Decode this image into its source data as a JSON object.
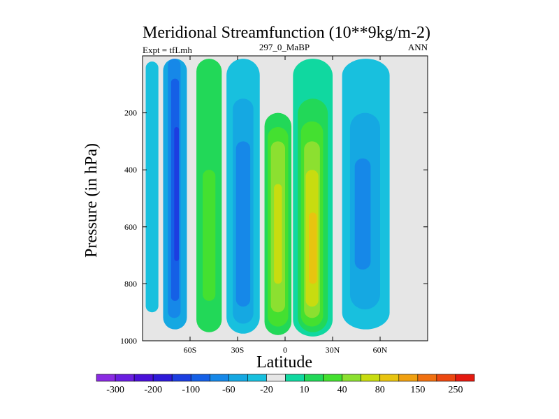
{
  "chart_data": {
    "type": "contour",
    "title": "Meridional Streamfunction (10**9kg/m-2)",
    "left_label": "Expt = tfLmh",
    "center_label": "297_0_MaBP",
    "right_label": "ANN",
    "xlabel": "Latitude",
    "ylabel": "Pressure (in hPa)",
    "xlim": [
      -90,
      90
    ],
    "ylim": [
      1000,
      0
    ],
    "x_ticks": [
      {
        "value": -60,
        "label": "60S"
      },
      {
        "value": -30,
        "label": "30S"
      },
      {
        "value": 0,
        "label": "0"
      },
      {
        "value": 30,
        "label": "30N"
      },
      {
        "value": 60,
        "label": "60N"
      }
    ],
    "y_ticks": [
      {
        "value": 200,
        "label": "200"
      },
      {
        "value": 400,
        "label": "400"
      },
      {
        "value": 600,
        "label": "600"
      },
      {
        "value": 800,
        "label": "800"
      },
      {
        "value": 1000,
        "label": "1000"
      }
    ],
    "missing_color": "#e6e6e6",
    "colorbar": {
      "colors": [
        "#8a2be2",
        "#6a1ee0",
        "#4a10d8",
        "#2e1ad8",
        "#1c3ee0",
        "#1560e6",
        "#1688e8",
        "#15a8e2",
        "#18c0de",
        "#e6e6e6",
        "#10d8a0",
        "#22d858",
        "#44e030",
        "#8ce030",
        "#c8dc10",
        "#e8c410",
        "#f0a010",
        "#f07010",
        "#ec4810",
        "#e41a10"
      ],
      "labels": [
        "-300",
        "-200",
        "-100",
        "-60",
        "-20",
        "10",
        "40",
        "80",
        "150",
        "250"
      ]
    },
    "cells": [
      {
        "lat": [
          -88,
          -80
        ],
        "p": [
          20,
          900
        ],
        "level": 8
      },
      {
        "lat": [
          -77,
          -62
        ],
        "p": [
          10,
          960
        ],
        "level": 7
      },
      {
        "lat": [
          -74,
          -66
        ],
        "p": [
          10,
          920
        ],
        "level": 6
      },
      {
        "lat": [
          -72,
          -67
        ],
        "p": [
          80,
          860
        ],
        "level": 5
      },
      {
        "lat": [
          -70,
          -67
        ],
        "p": [
          250,
          720
        ],
        "level": 4
      },
      {
        "lat": [
          -56,
          -40
        ],
        "p": [
          10,
          970
        ],
        "level": 11
      },
      {
        "lat": [
          -54,
          -42
        ],
        "p": [
          160,
          920
        ],
        "level": 11
      },
      {
        "lat": [
          -52,
          -44
        ],
        "p": [
          400,
          860
        ],
        "level": 12
      },
      {
        "lat": [
          -37,
          -16
        ],
        "p": [
          10,
          975
        ],
        "level": 8
      },
      {
        "lat": [
          -33,
          -20
        ],
        "p": [
          150,
          940
        ],
        "level": 7
      },
      {
        "lat": [
          -31,
          -22
        ],
        "p": [
          300,
          880
        ],
        "level": 6
      },
      {
        "lat": [
          -13,
          4
        ],
        "p": [
          200,
          980
        ],
        "level": 11
      },
      {
        "lat": [
          -11,
          2
        ],
        "p": [
          250,
          950
        ],
        "level": 12
      },
      {
        "lat": [
          -9,
          0
        ],
        "p": [
          300,
          900
        ],
        "level": 13
      },
      {
        "lat": [
          -7,
          -2
        ],
        "p": [
          450,
          800
        ],
        "level": 14
      },
      {
        "lat": [
          5,
          30
        ],
        "p": [
          10,
          985
        ],
        "level": 10
      },
      {
        "lat": [
          8,
          27
        ],
        "p": [
          150,
          970
        ],
        "level": 11
      },
      {
        "lat": [
          10,
          24
        ],
        "p": [
          230,
          950
        ],
        "level": 12
      },
      {
        "lat": [
          12,
          22
        ],
        "p": [
          300,
          920
        ],
        "level": 13
      },
      {
        "lat": [
          13,
          21
        ],
        "p": [
          400,
          880
        ],
        "level": 14
      },
      {
        "lat": [
          15,
          20
        ],
        "p": [
          550,
          800
        ],
        "level": 15
      },
      {
        "lat": [
          36,
          66
        ],
        "p": [
          10,
          960
        ],
        "level": 8
      },
      {
        "lat": [
          41,
          60
        ],
        "p": [
          200,
          890
        ],
        "level": 7
      },
      {
        "lat": [
          44,
          54
        ],
        "p": [
          360,
          750
        ],
        "level": 6
      }
    ]
  }
}
